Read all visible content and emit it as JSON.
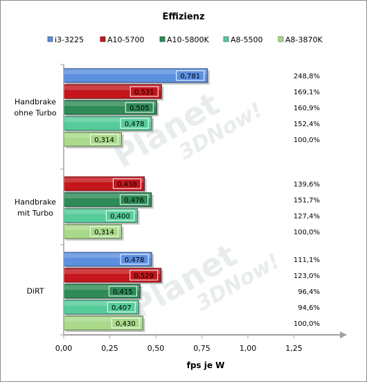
{
  "chart_data": {
    "type": "bar",
    "orientation": "horizontal",
    "title": "Effizienz",
    "xlabel": "fps je W",
    "ylabel": "",
    "xlim": [
      0,
      1.5
    ],
    "xticks": [
      "0,00",
      "0,25",
      "0,50",
      "0,75",
      "1,00",
      "1,25"
    ],
    "grid": false,
    "legend_position": "top",
    "watermark": "Planet 3DNow!",
    "series": [
      {
        "name": "i3-3225",
        "color": "#5b8fe0"
      },
      {
        "name": "A10-5700",
        "color": "#c4161c"
      },
      {
        "name": "A10-5800K",
        "color": "#2e8b57"
      },
      {
        "name": "A8-5500",
        "color": "#55cc99"
      },
      {
        "name": "A8-3870K",
        "color": "#a9d98a"
      }
    ],
    "categories": [
      {
        "name": "Handbrake ohne Turbo",
        "lines": [
          "Handbrake",
          "ohne Turbo"
        ],
        "bars": [
          {
            "series": "i3-3225",
            "value": 0.781,
            "label": "0,781",
            "pct": "248,8%"
          },
          {
            "series": "A10-5700",
            "value": 0.531,
            "label": "0,531",
            "pct": "169,1%"
          },
          {
            "series": "A10-5800K",
            "value": 0.505,
            "label": "0,505",
            "pct": "160,9%"
          },
          {
            "series": "A8-5500",
            "value": 0.478,
            "label": "0,478",
            "pct": "152,4%"
          },
          {
            "series": "A8-3870K",
            "value": 0.314,
            "label": "0,314",
            "pct": "100,0%"
          }
        ]
      },
      {
        "name": "Handbrake mit Turbo",
        "lines": [
          "Handbrake",
          "mit Turbo"
        ],
        "bars": [
          {
            "series": "A10-5700",
            "value": 0.438,
            "label": "0,438",
            "pct": "139,6%"
          },
          {
            "series": "A10-5800K",
            "value": 0.476,
            "label": "0,476",
            "pct": "151,7%"
          },
          {
            "series": "A8-5500",
            "value": 0.4,
            "label": "0,400",
            "pct": "127,4%"
          },
          {
            "series": "A8-3870K",
            "value": 0.314,
            "label": "0,314",
            "pct": "100,0%"
          }
        ]
      },
      {
        "name": "DiRT",
        "lines": [
          "DiRT"
        ],
        "bars": [
          {
            "series": "i3-3225",
            "value": 0.478,
            "label": "0,478",
            "pct": "111,1%"
          },
          {
            "series": "A10-5700",
            "value": 0.529,
            "label": "0,529",
            "pct": "123,0%"
          },
          {
            "series": "A10-5800K",
            "value": 0.415,
            "label": "0,415",
            "pct": "96,4%"
          },
          {
            "series": "A8-5500",
            "value": 0.407,
            "label": "0,407",
            "pct": "94,6%"
          },
          {
            "series": "A8-3870K",
            "value": 0.43,
            "label": "0,430",
            "pct": "100,0%"
          }
        ]
      }
    ]
  }
}
